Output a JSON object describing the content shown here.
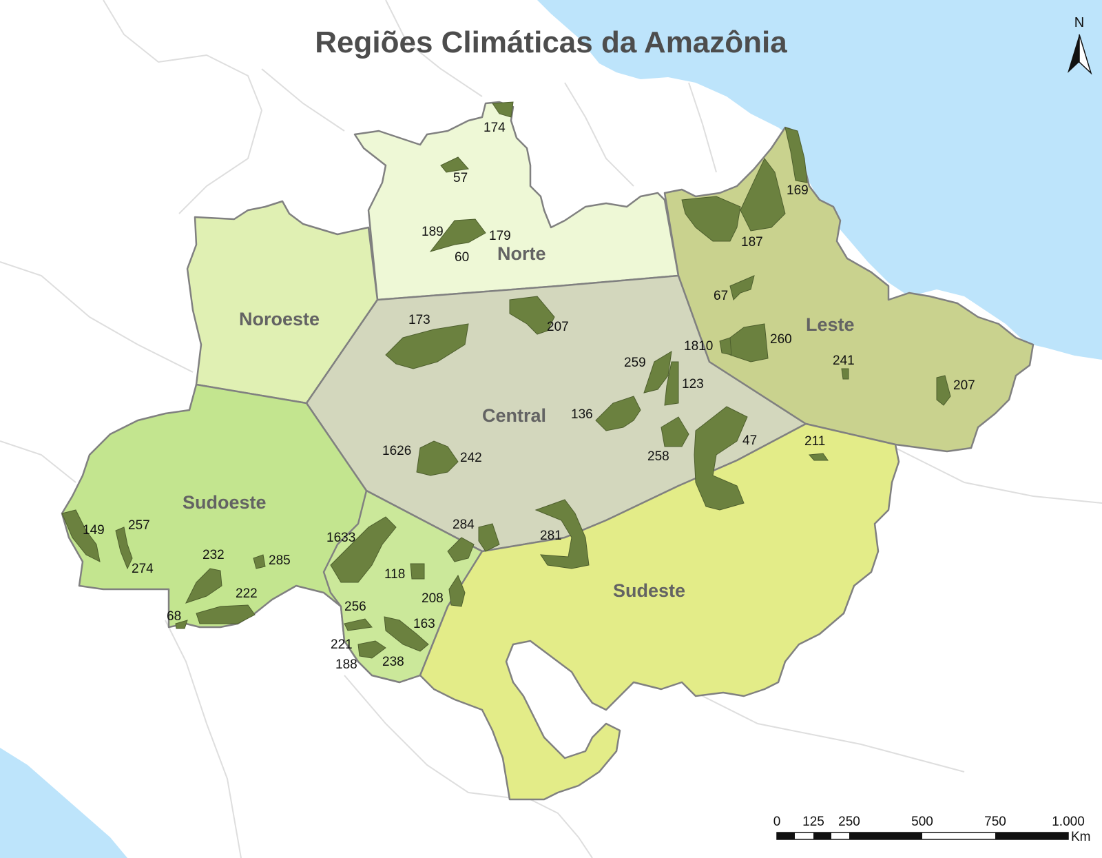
{
  "title": "Regiões Climáticas da Amazônia",
  "colors": {
    "ocean": "#bde4fb",
    "land": "#ffffff",
    "border": "#e3e3e3",
    "region_border": "#808080",
    "protected_area": "#6b813f",
    "norte": "#eef8d6",
    "noroeste": "#e0f0b3",
    "central": "#d3d7bd",
    "leste": "#c9d28e",
    "sudoeste": "#c3e58f",
    "sudoeste_south": "#cbe89a",
    "sudeste": "#e3ec88"
  },
  "regions": {
    "norte": "Norte",
    "noroeste": "Noroeste",
    "central": "Central",
    "leste": "Leste",
    "sudoeste": "Sudoeste",
    "sudeste": "Sudeste"
  },
  "areas": [
    "174",
    "57",
    "189",
    "179",
    "60",
    "169",
    "187",
    "67",
    "173",
    "207",
    "1810",
    "260",
    "241",
    "207",
    "259",
    "123",
    "136",
    "47",
    "258",
    "1626",
    "242",
    "211",
    "149",
    "257",
    "274",
    "232",
    "285",
    "1633",
    "118",
    "222",
    "208",
    "284",
    "281",
    "68",
    "256",
    "163",
    "221",
    "238",
    "188"
  ],
  "north_arrow": {
    "label": "N"
  },
  "scale_bar": {
    "ticks": [
      "0",
      "125",
      "250",
      "500",
      "750",
      "1.000"
    ],
    "unit": "Km"
  }
}
